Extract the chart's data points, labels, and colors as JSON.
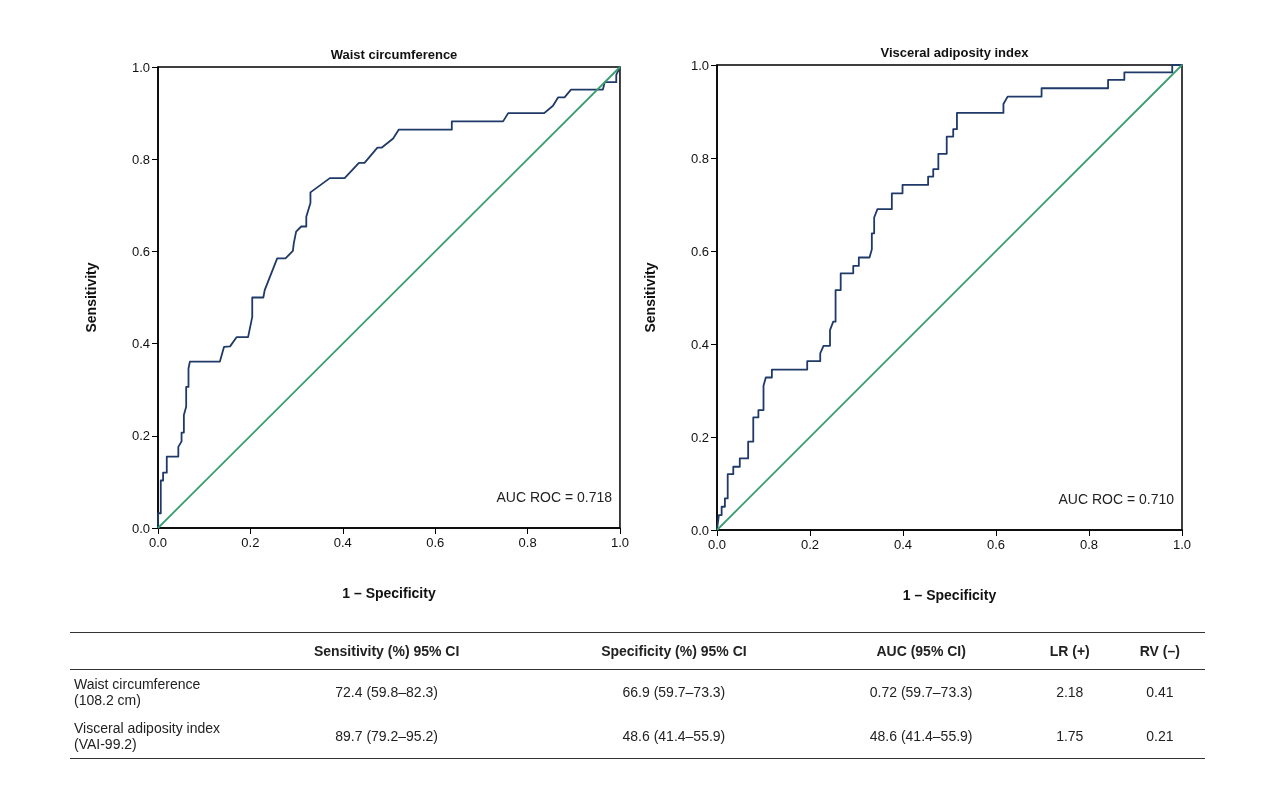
{
  "chart_data": [
    {
      "type": "line",
      "title": "Waist circumference",
      "xlabel": "1 – Specificity",
      "ylabel": "Sensitivity",
      "annotations": [
        "AUC ROC = 0.718"
      ],
      "grid": false,
      "marker": "none",
      "line_style": "solid",
      "xlim": [
        0,
        1
      ],
      "ylim": [
        0,
        1
      ],
      "xticks": [
        {
          "value": 0,
          "label": "0.0"
        },
        {
          "value": 0.2,
          "label": "0.2"
        },
        {
          "value": 0.4,
          "label": "0.4"
        },
        {
          "value": 0.6,
          "label": "0.6"
        },
        {
          "value": 0.8,
          "label": "0.8"
        },
        {
          "value": 1,
          "label": "1.0"
        }
      ],
      "yticks": [
        {
          "value": 0,
          "label": "0.0"
        },
        {
          "value": 0.2,
          "label": "0.2"
        },
        {
          "value": 0.4,
          "label": "0.4"
        },
        {
          "value": 0.6,
          "label": "0.6"
        },
        {
          "value": 0.8,
          "label": "0.8"
        },
        {
          "value": 1,
          "label": "1.0"
        }
      ],
      "series": [
        {
          "color": "#1f3a68",
          "x": [
            0,
            0,
            0.006,
            0.006,
            0.011,
            0.011,
            0.019,
            0.019,
            0.044,
            0.044,
            0.051,
            0.051,
            0.056,
            0.056,
            0.061,
            0.061,
            0.066,
            0.066,
            0.069,
            0.134,
            0.143,
            0.156,
            0.17,
            0.195,
            0.204,
            0.204,
            0.228,
            0.231,
            0.258,
            0.276,
            0.292,
            0.294,
            0.299,
            0.31,
            0.321,
            0.321,
            0.33,
            0.33,
            0.372,
            0.404,
            0.435,
            0.447,
            0.475,
            0.484,
            0.509,
            0.521,
            0.636,
            0.636,
            0.747,
            0.758,
            0.836,
            0.855,
            0.866,
            0.88,
            0.894,
            0.963,
            0.967,
            0.992,
            0.992,
            1.0
          ],
          "values": [
            0,
            0.032,
            0.032,
            0.103,
            0.103,
            0.12,
            0.12,
            0.155,
            0.155,
            0.176,
            0.188,
            0.207,
            0.207,
            0.245,
            0.263,
            0.306,
            0.306,
            0.346,
            0.361,
            0.361,
            0.393,
            0.394,
            0.414,
            0.414,
            0.458,
            0.5,
            0.5,
            0.516,
            0.585,
            0.585,
            0.601,
            0.618,
            0.643,
            0.654,
            0.654,
            0.675,
            0.705,
            0.728,
            0.759,
            0.759,
            0.792,
            0.792,
            0.825,
            0.825,
            0.845,
            0.864,
            0.864,
            0.882,
            0.882,
            0.9,
            0.9,
            0.916,
            0.934,
            0.934,
            0.951,
            0.951,
            0.967,
            0.967,
            0.983,
            1.0
          ]
        },
        {
          "color": "#3a9e6f",
          "x": [
            0,
            1
          ],
          "values": [
            0,
            1
          ]
        }
      ]
    },
    {
      "type": "line",
      "title": "Visceral adiposity index",
      "xlabel": "1 – Specificity",
      "ylabel": "Sensitivity",
      "annotations": [
        "AUC ROC = 0.710"
      ],
      "grid": false,
      "marker": "none",
      "line_style": "solid",
      "xlim": [
        0,
        1
      ],
      "ylim": [
        0,
        1
      ],
      "xticks": [
        {
          "value": 0,
          "label": "0.0"
        },
        {
          "value": 0.2,
          "label": "0.2"
        },
        {
          "value": 0.4,
          "label": "0.4"
        },
        {
          "value": 0.6,
          "label": "0.6"
        },
        {
          "value": 0.8,
          "label": "0.8"
        },
        {
          "value": 1,
          "label": "1.0"
        }
      ],
      "yticks": [
        {
          "value": 0,
          "label": "0.0"
        },
        {
          "value": 0.2,
          "label": "0.2"
        },
        {
          "value": 0.4,
          "label": "0.4"
        },
        {
          "value": 0.6,
          "label": "0.6"
        },
        {
          "value": 0.8,
          "label": "0.8"
        },
        {
          "value": 1,
          "label": "1.0"
        }
      ],
      "series": [
        {
          "color": "#1f3a68",
          "x": [
            0,
            0.004,
            0.01,
            0.01,
            0.017,
            0.017,
            0.023,
            0.023,
            0.035,
            0.035,
            0.049,
            0.049,
            0.067,
            0.067,
            0.078,
            0.078,
            0.089,
            0.089,
            0.1,
            0.1,
            0.105,
            0.118,
            0.118,
            0.194,
            0.194,
            0.222,
            0.222,
            0.229,
            0.243,
            0.243,
            0.25,
            0.255,
            0.255,
            0.266,
            0.266,
            0.293,
            0.293,
            0.305,
            0.305,
            0.328,
            0.333,
            0.333,
            0.338,
            0.338,
            0.345,
            0.376,
            0.376,
            0.399,
            0.399,
            0.454,
            0.454,
            0.465,
            0.465,
            0.476,
            0.476,
            0.494,
            0.494,
            0.508,
            0.508,
            0.516,
            0.516,
            0.616,
            0.616,
            0.625,
            0.698,
            0.698,
            0.841,
            0.841,
            0.876,
            0.876,
            0.979,
            0.979,
            1.0
          ],
          "values": [
            0,
            0.032,
            0.032,
            0.05,
            0.05,
            0.068,
            0.068,
            0.12,
            0.12,
            0.136,
            0.136,
            0.154,
            0.154,
            0.19,
            0.19,
            0.242,
            0.242,
            0.258,
            0.258,
            0.31,
            0.328,
            0.328,
            0.345,
            0.345,
            0.363,
            0.363,
            0.38,
            0.396,
            0.396,
            0.43,
            0.448,
            0.448,
            0.516,
            0.516,
            0.552,
            0.552,
            0.568,
            0.568,
            0.586,
            0.586,
            0.604,
            0.638,
            0.638,
            0.672,
            0.69,
            0.69,
            0.724,
            0.724,
            0.742,
            0.742,
            0.76,
            0.76,
            0.776,
            0.776,
            0.809,
            0.809,
            0.846,
            0.846,
            0.862,
            0.862,
            0.897,
            0.897,
            0.916,
            0.932,
            0.932,
            0.95,
            0.95,
            0.968,
            0.968,
            0.984,
            0.984,
            1.0,
            1.0
          ]
        },
        {
          "color": "#3a9e6f",
          "x": [
            0,
            1
          ],
          "values": [
            0,
            1
          ]
        }
      ]
    },
    {
      "type": "other",
      "categories": [
        null,
        "Sensitivity (%) 95% CI",
        "Specificity (%) 95% CI",
        "AUC (95% CI)",
        "LR (+)",
        "RV (–)"
      ],
      "y_categories": [
        "Waist circumference (108.2 cm)",
        "Visceral adiposity index (VAI-99.2)"
      ],
      "cell_labels": [
        [
          "72.4 (59.8–82.3)",
          "66.9 (59.7–73.3)",
          "0.72 (59.7–73.3)",
          "2.18",
          "0.41"
        ],
        [
          "89.7 (79.2–95.2)",
          "48.6 (41.4–55.9)",
          "48.6 (41.4–55.9)",
          "1.75",
          "0.21"
        ]
      ]
    }
  ]
}
